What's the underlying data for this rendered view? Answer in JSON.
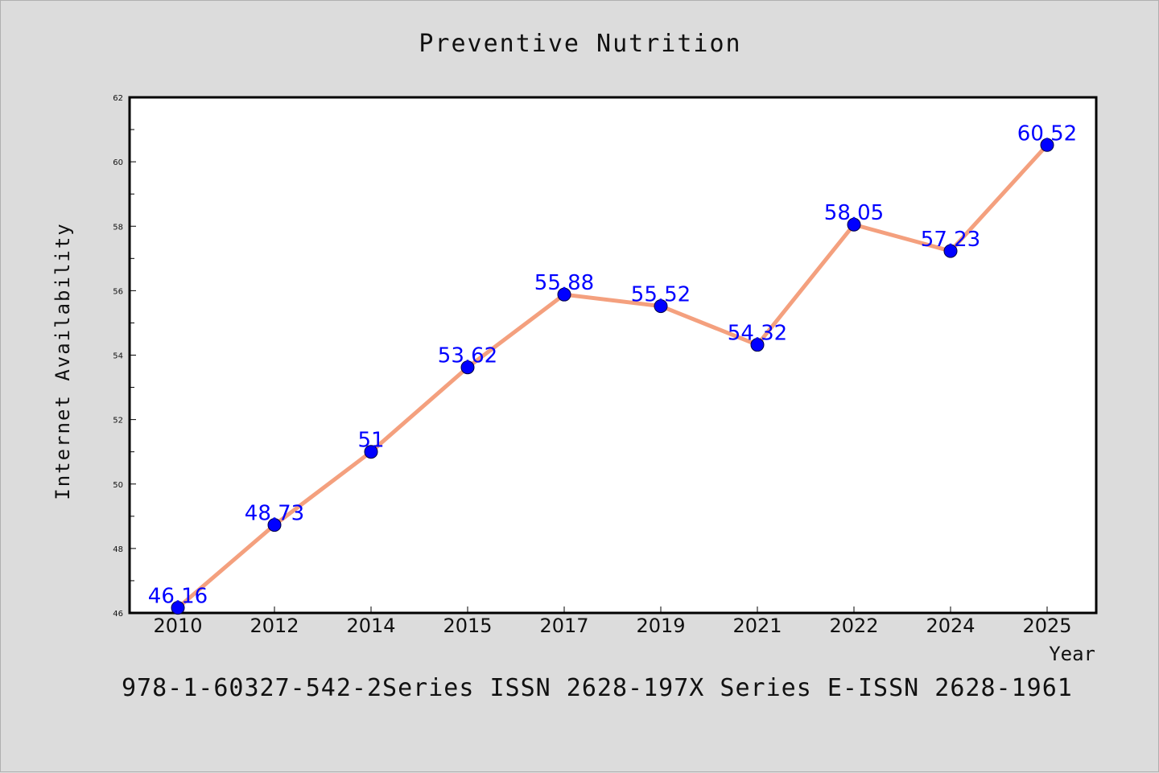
{
  "chart_data": {
    "type": "line",
    "title": "Preventive Nutrition",
    "xlabel": "Year",
    "ylabel": "Internet Availability",
    "categories": [
      "2010",
      "2012",
      "2014",
      "2015",
      "2017",
      "2019",
      "2021",
      "2022",
      "2024",
      "2025"
    ],
    "series": [
      {
        "values": [
          46.16,
          48.73,
          51,
          53.62,
          55.88,
          55.52,
          54.32,
          58.05,
          57.23,
          60.52
        ],
        "labels": [
          "46.16",
          "48.73",
          "51",
          "53.62",
          "55.88",
          "55.52",
          "54.32",
          "58.05",
          "57.23",
          "60.52"
        ],
        "line_color": "#f4a07e",
        "marker_color": "#0000ff"
      }
    ],
    "ylim": [
      46,
      62
    ],
    "yticks": [
      "46",
      "48",
      "50",
      "52",
      "54",
      "56",
      "58",
      "60",
      "62"
    ],
    "grid": false,
    "legend": "none"
  },
  "footer": {
    "text": "978-1-60327-542-2Series ISSN 2628-197X Series E-ISSN 2628-1961"
  }
}
